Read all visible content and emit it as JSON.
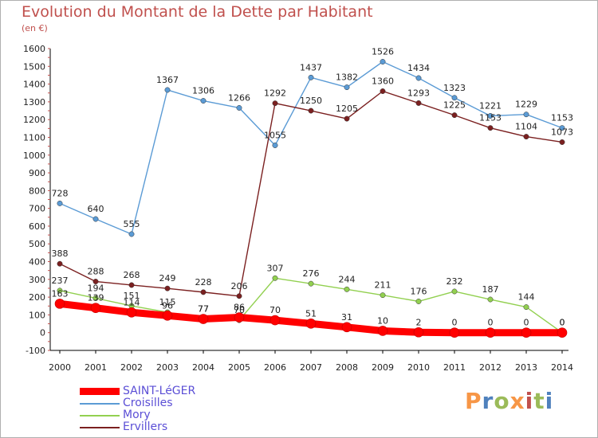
{
  "chart_data": {
    "type": "line",
    "title": "Evolution du Montant de la Dette par Habitant",
    "subtitle": "(en €)",
    "x": [
      "2000",
      "2001",
      "2002",
      "2003",
      "2004",
      "2005",
      "2006",
      "2007",
      "2008",
      "2009",
      "2010",
      "2011",
      "2012",
      "2013",
      "2014"
    ],
    "ylim": [
      -100,
      1600
    ],
    "yticks": [
      -100,
      0,
      100,
      200,
      300,
      400,
      500,
      600,
      700,
      800,
      900,
      1000,
      1100,
      1200,
      1300,
      1400,
      1500,
      1600
    ],
    "grid": false,
    "legend_position": "bottom-left",
    "series": [
      {
        "name": "SAINT-LéGER",
        "color": "#ff0000",
        "values": [
          163,
          139,
          114,
          96,
          77,
          86,
          70,
          51,
          31,
          10,
          2,
          0,
          0,
          0,
          0
        ],
        "labels": [
          "163",
          "139",
          "114",
          "96",
          "77",
          "86",
          "70",
          "51",
          "31",
          "10",
          "2",
          "0",
          "0",
          "0",
          "0"
        ]
      },
      {
        "name": "Croisilles",
        "color": "#5b9bd5",
        "values": [
          728,
          640,
          555,
          1367,
          1306,
          1266,
          1055,
          1437,
          1382,
          1526,
          1434,
          1323,
          1221,
          1229,
          1153
        ],
        "labels": [
          "728",
          "640",
          "555",
          "1367",
          "1306",
          "1266",
          "1055",
          "1437",
          "1382",
          "1526",
          "1434",
          "1323",
          "1221",
          "1229",
          "1153"
        ]
      },
      {
        "name": "Mory",
        "color": "#92d050",
        "values": [
          237,
          194,
          151,
          115,
          77,
          70,
          307,
          276,
          244,
          211,
          176,
          232,
          187,
          144,
          0
        ],
        "labels": [
          "237",
          "194",
          "151",
          "115",
          "77",
          "70",
          "307",
          "276",
          "244",
          "211",
          "176",
          "232",
          "187",
          "144",
          "0"
        ]
      },
      {
        "name": "Ervillers",
        "color": "#7b2020",
        "values": [
          388,
          288,
          268,
          249,
          228,
          206,
          1292,
          1250,
          1205,
          1360,
          1293,
          1225,
          1153,
          1104,
          1073
        ],
        "labels": [
          "388",
          "288",
          "268",
          "249",
          "228",
          "206",
          "1292",
          "1250",
          "1205",
          "1360",
          "1293",
          "1225",
          "1153",
          "1104",
          "1073"
        ]
      }
    ]
  },
  "legend": [
    {
      "label": "SAINT-LéGER",
      "color": "#ff0000"
    },
    {
      "label": "Croisilles",
      "color": "#5b9bd5"
    },
    {
      "label": "Mory",
      "color": "#92d050"
    },
    {
      "label": "Ervillers",
      "color": "#7b2020"
    }
  ],
  "logo": {
    "text": "Proxiti"
  }
}
